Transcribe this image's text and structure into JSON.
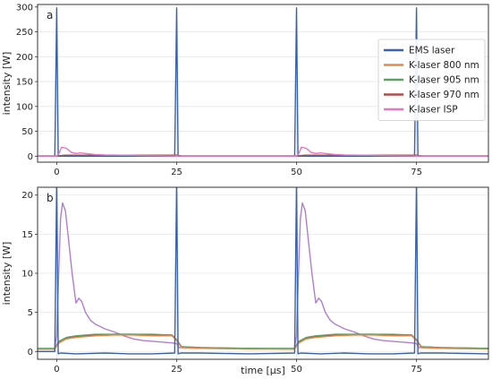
{
  "chart_data": [
    {
      "type": "line",
      "panel_label": "a",
      "xlabel": "",
      "ylabel": "intensity [W]",
      "xlim": [
        -4,
        90
      ],
      "ylim": [
        -12,
        305
      ],
      "xticks": [
        0,
        25,
        50,
        75
      ],
      "yticks": [
        0,
        50,
        100,
        150,
        200,
        250,
        300
      ],
      "grid": true,
      "legend": {
        "placement": "right",
        "entries": [
          "EMS laser",
          "K-laser 800 nm",
          "K-laser 905 nm",
          "K-laser 970 nm",
          "K-laser ISP"
        ]
      },
      "series": [
        {
          "name": "EMS laser",
          "color": "#3a62a8",
          "x": [
            -4,
            -0.4,
            0,
            0.3,
            0.8,
            24.6,
            25,
            25.3,
            25.8,
            49.6,
            50,
            50.3,
            50.8,
            74.6,
            75,
            75.3,
            75.8,
            90
          ],
          "y": [
            0,
            0,
            298,
            0,
            0,
            0,
            298,
            0,
            0,
            0,
            298,
            0,
            0,
            0,
            298,
            0,
            0,
            0
          ]
        },
        {
          "name": "K-laser 800 nm",
          "color": "#e8884b",
          "x": [
            -4,
            0,
            2,
            25,
            26,
            50,
            52,
            75,
            76,
            90
          ],
          "y": [
            0.4,
            0.4,
            2,
            2,
            0.4,
            0.4,
            2,
            2,
            0.4,
            0.4
          ]
        },
        {
          "name": "K-laser 905 nm",
          "color": "#5aa163",
          "x": [
            -4,
            0,
            2,
            25,
            26,
            50,
            52,
            75,
            76,
            90
          ],
          "y": [
            0.4,
            0.4,
            2,
            2,
            0.4,
            0.4,
            2,
            2,
            0.4,
            0.4
          ]
        },
        {
          "name": "K-laser 970 nm",
          "color": "#b04b4b",
          "x": [
            -4,
            0,
            2,
            25,
            26,
            50,
            52,
            75,
            76,
            90
          ],
          "y": [
            0.4,
            0.4,
            2,
            2,
            0.4,
            0.4,
            2,
            2,
            0.4,
            0.4
          ]
        },
        {
          "name": "K-laser ISP",
          "color": "#e377c2",
          "x": [
            -4,
            0,
            0.5,
            1,
            2,
            3,
            4,
            5,
            6,
            8,
            10,
            15,
            20,
            24,
            26,
            50,
            50.5,
            51,
            52,
            53,
            54,
            55,
            56,
            58,
            60,
            65,
            70,
            74,
            76,
            90
          ],
          "y": [
            0.3,
            0.3,
            6,
            18,
            16,
            8,
            5.5,
            6.5,
            5.5,
            3.5,
            2.5,
            1.8,
            1,
            0.5,
            0.3,
            0.3,
            6,
            18,
            16,
            8,
            5.5,
            6.5,
            5.5,
            3.5,
            2.5,
            1.8,
            1,
            0.5,
            0.3,
            0.3
          ]
        }
      ]
    },
    {
      "type": "line",
      "panel_label": "b",
      "xlabel": "time [μs]",
      "ylabel": "intensity [W]",
      "xlim": [
        -4,
        90
      ],
      "ylim": [
        -1,
        21
      ],
      "xticks": [
        0,
        25,
        50,
        75
      ],
      "yticks": [
        0,
        5,
        10,
        15,
        20
      ],
      "grid": true,
      "series": [
        {
          "name": "K-laser ISP",
          "color": "#b07fcf",
          "x": [
            -4,
            -0.5,
            0,
            0.4,
            0.8,
            1.2,
            1.8,
            2.5,
            3.2,
            4,
            4.6,
            5.2,
            6,
            7,
            8,
            9,
            10,
            12,
            14,
            16,
            18,
            20,
            22,
            24,
            25,
            25.5,
            30,
            40,
            49.5,
            50,
            50.4,
            50.8,
            51.2,
            51.8,
            52.5,
            53.2,
            54,
            54.6,
            55.2,
            56,
            57,
            58,
            59,
            60,
            62,
            64,
            66,
            68,
            70,
            72,
            74,
            75,
            75.5,
            80,
            90
          ],
          "y": [
            0.3,
            0.3,
            2,
            10,
            17,
            19,
            18,
            14,
            10,
            6.2,
            6.8,
            6.4,
            5,
            4,
            3.5,
            3.2,
            2.9,
            2.5,
            2,
            1.6,
            1.4,
            1.3,
            1.2,
            1.1,
            1,
            0.5,
            0.4,
            0.4,
            0.3,
            2,
            10,
            17,
            19,
            18,
            14,
            10,
            6.2,
            6.8,
            6.4,
            5,
            4,
            3.5,
            3.2,
            2.9,
            2.5,
            2,
            1.6,
            1.4,
            1.3,
            1.2,
            1.1,
            1,
            0.5,
            0.4,
            0.4
          ]
        },
        {
          "name": "K-laser 970 nm",
          "color": "#b04b4b",
          "x": [
            -4,
            -0.5,
            0.5,
            2,
            4,
            8,
            12,
            16,
            20,
            24,
            25,
            26,
            30,
            40,
            49.5,
            50.5,
            52,
            54,
            58,
            62,
            66,
            70,
            74,
            75,
            76,
            80,
            90
          ],
          "y": [
            0.3,
            0.3,
            1.2,
            1.7,
            1.9,
            2.1,
            2.2,
            2.2,
            2.1,
            2.1,
            1.5,
            0.6,
            0.5,
            0.4,
            0.3,
            1.2,
            1.7,
            1.9,
            2.1,
            2.2,
            2.2,
            2.1,
            2.1,
            1.5,
            0.6,
            0.5,
            0.4
          ]
        },
        {
          "name": "K-laser 905 nm",
          "color": "#5aa163",
          "x": [
            -4,
            -0.5,
            0.5,
            2,
            4,
            8,
            12,
            16,
            20,
            24,
            25,
            26,
            30,
            40,
            49.5,
            50.5,
            52,
            54,
            58,
            62,
            66,
            70,
            74,
            75,
            76,
            80,
            90
          ],
          "y": [
            0.4,
            0.4,
            1.3,
            1.8,
            2,
            2.2,
            2.2,
            2.2,
            2.2,
            2.1,
            1.5,
            0.6,
            0.5,
            0.4,
            0.4,
            1.3,
            1.8,
            2,
            2.2,
            2.2,
            2.2,
            2.2,
            2.1,
            1.5,
            0.6,
            0.5,
            0.4
          ]
        },
        {
          "name": "K-laser 800 nm",
          "color": "#e8884b",
          "x": [
            -4,
            -0.5,
            0.5,
            2,
            4,
            8,
            12,
            16,
            20,
            24,
            25,
            26,
            30,
            40,
            49.5,
            50.5,
            52,
            54,
            58,
            62,
            66,
            70,
            74,
            75,
            76,
            80,
            90
          ],
          "y": [
            0.3,
            0.3,
            1.1,
            1.6,
            1.8,
            2,
            2.1,
            2.1,
            2,
            2,
            1.4,
            0.5,
            0.4,
            0.3,
            0.3,
            1.1,
            1.6,
            1.8,
            2,
            2.1,
            2.1,
            2,
            2,
            1.4,
            0.5,
            0.4,
            0.3
          ]
        },
        {
          "name": "EMS laser",
          "color": "#3a62a8",
          "x": [
            -4,
            -0.4,
            0,
            0.3,
            0.8,
            4,
            10,
            15,
            20,
            24.6,
            25,
            25.3,
            25.8,
            30,
            40,
            49.6,
            50,
            50.3,
            50.8,
            55,
            60,
            65,
            70,
            74.6,
            75,
            75.3,
            75.8,
            80,
            90
          ],
          "y": [
            0,
            0,
            22,
            -0.3,
            -0.2,
            -0.3,
            -0.2,
            -0.3,
            -0.3,
            -0.2,
            22,
            -0.3,
            -0.2,
            -0.2,
            -0.3,
            -0.2,
            22,
            -0.3,
            -0.2,
            -0.3,
            -0.2,
            -0.3,
            -0.3,
            -0.2,
            22,
            -0.3,
            -0.2,
            -0.2,
            -0.3
          ]
        }
      ]
    }
  ]
}
